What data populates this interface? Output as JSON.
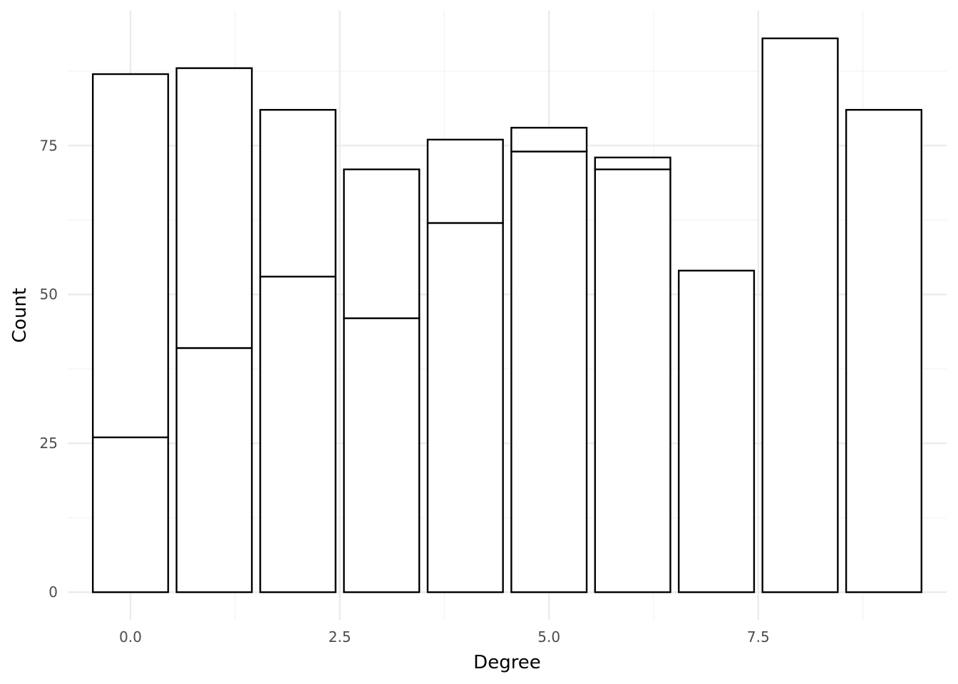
{
  "chart_data": {
    "type": "bar",
    "title": "",
    "xlabel": "Degree",
    "ylabel": "Count",
    "x": [
      0,
      1,
      2,
      3,
      4,
      5,
      6,
      7,
      8,
      9
    ],
    "stacked_segments": [
      [
        26,
        61
      ],
      [
        41,
        47
      ],
      [
        53,
        28
      ],
      [
        46,
        25
      ],
      [
        62,
        14
      ],
      [
        74,
        4
      ],
      [
        71,
        2
      ],
      [
        54
      ],
      [
        93
      ],
      [
        81
      ]
    ],
    "totals": [
      87,
      88,
      81,
      71,
      76,
      78,
      73,
      54,
      93,
      81
    ],
    "xlim": [
      -0.75,
      9.75
    ],
    "ylim": [
      -4.65,
      97.65
    ],
    "x_ticks": [
      {
        "value": 0,
        "label": "0.0"
      },
      {
        "value": 2.5,
        "label": "2.5"
      },
      {
        "value": 5,
        "label": "5.0"
      },
      {
        "value": 7.5,
        "label": "7.5"
      }
    ],
    "y_ticks": [
      {
        "value": 0,
        "label": "0"
      },
      {
        "value": 25,
        "label": "25"
      },
      {
        "value": 50,
        "label": "50"
      },
      {
        "value": 75,
        "label": "75"
      }
    ],
    "x_minor_ticks": [
      1.25,
      3.75,
      6.25,
      8.75
    ],
    "y_minor_ticks": [
      12.5,
      37.5,
      62.5,
      87.5
    ],
    "grid": true,
    "legend": "none",
    "colors": {
      "bar_fill": "#ffffff",
      "bar_stroke": "#000000",
      "grid_major": "#ebebeb",
      "grid_minor": "#f2f2f2",
      "tick_text": "#4d4d4d",
      "axis_title_text": "#000000"
    }
  }
}
